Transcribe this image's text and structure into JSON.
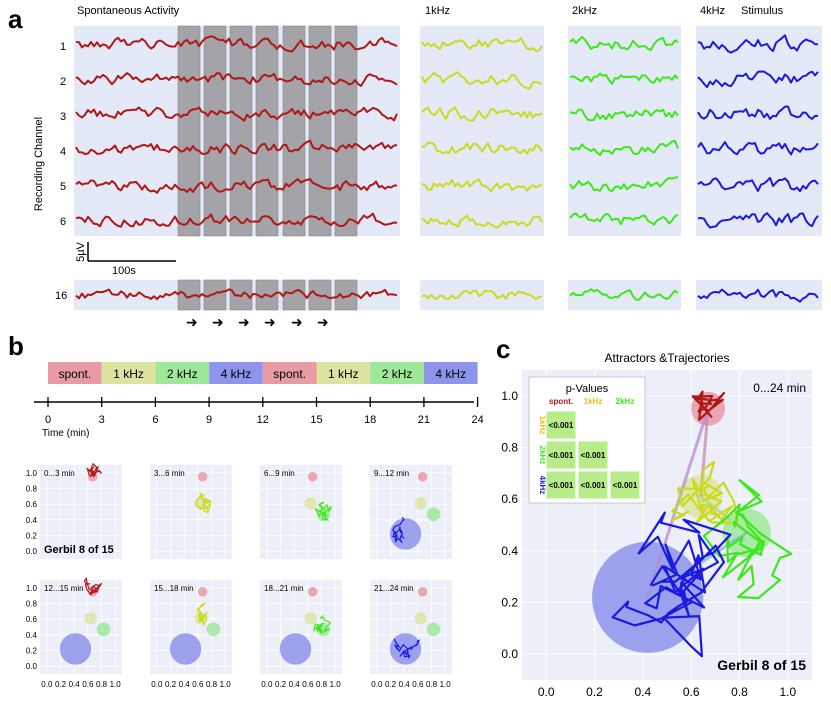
{
  "colors": {
    "spont": "#b01818",
    "hz1": "#c9dc1e",
    "hz2": "#3ee81a",
    "hz4": "#1a1ae0",
    "panel_bg": "#e3e9f6",
    "stim_bar": "#a3a3a8",
    "pv_cell": "#b6ec8a",
    "circle_spont": "#e89aa5",
    "circle_1k": "#dfe3a2",
    "circle_2k": "#9fe89a",
    "circle_4k": "#8e93ec"
  },
  "panel_a": {
    "label": "a",
    "titles": {
      "spont": "Spontaneous Activity",
      "hz1": "1kHz",
      "hz2": "2kHz",
      "hz4": "4kHz",
      "stimulus": "Stimulus"
    },
    "ylabel": "Recording Channel",
    "channels": [
      "1",
      "2",
      "3",
      "4",
      "5",
      "6"
    ],
    "channel_extra": "16",
    "scale_y": "5µV",
    "scale_x": "100s",
    "arrow_glyph": "➜",
    "stim_bar_count": 7,
    "arrow_count": 6
  },
  "panel_b": {
    "label": "b",
    "blocks": [
      "spont.",
      "1 kHz",
      "2 kHz",
      "4 kHz",
      "spont.",
      "1 kHz",
      "2 kHz",
      "4 kHz"
    ],
    "timeline_ticks": [
      "0",
      "3",
      "6",
      "9",
      "12",
      "15",
      "18",
      "21",
      "24"
    ],
    "time_label": "Time (min)",
    "y_ticks": [
      "1.0",
      "0.8",
      "0.6",
      "0.4",
      "0.2",
      "0.0"
    ],
    "x_ticks": [
      "0.0",
      "0.2",
      "0.4",
      "0.6",
      "0.8",
      "1.0"
    ],
    "subplot_titles": [
      "0...3 min",
      "3...6 min",
      "6...9 min",
      "9...12 min",
      "12...15 min",
      "15...18 min",
      "18...21 min",
      "21...24 min"
    ],
    "gerbil_label": "Gerbil 8 of 15"
  },
  "panel_c": {
    "label": "c",
    "title": "Attractors &Trajectories",
    "time_range": "0...24 min",
    "gerbil_label": "Gerbil 8 of 15",
    "pvalues": {
      "title": "p-Values",
      "col_labels": [
        "spont.",
        "1kHz",
        "2kHz"
      ],
      "row_labels": [
        "1kHz",
        "2kHz",
        "4kHz"
      ],
      "cell_value": "<0.001"
    }
  },
  "chart_data": {
    "type": "scatter",
    "title": "Attractors &Trajectories",
    "subtitle": "0...24 min",
    "xlabel": "",
    "ylabel": "",
    "xlim": [
      -0.1,
      1.1
    ],
    "ylim": [
      -0.1,
      1.1
    ],
    "x_ticks": [
      0.0,
      0.2,
      0.4,
      0.6,
      0.8,
      1.0
    ],
    "y_ticks": [
      0.0,
      0.2,
      0.4,
      0.6,
      0.8,
      1.0
    ],
    "attractors": [
      {
        "name": "spont.",
        "x": 0.67,
        "y": 0.95,
        "r": 0.07
      },
      {
        "name": "1kHz",
        "x": 0.64,
        "y": 0.61,
        "r": 0.09
      },
      {
        "name": "2kHz",
        "x": 0.83,
        "y": 0.47,
        "r": 0.1
      },
      {
        "name": "4kHz",
        "x": 0.42,
        "y": 0.22,
        "r": 0.23
      }
    ]
  }
}
